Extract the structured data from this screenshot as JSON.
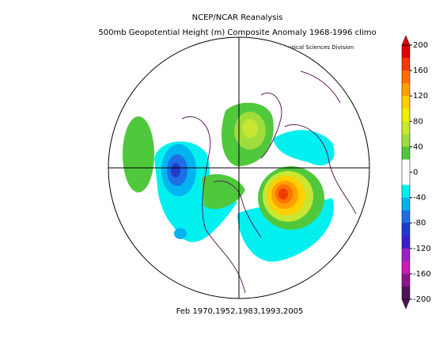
{
  "header": {
    "title": "NCEP/NCAR Reanalysis",
    "subtitle": "500mb Geopotential Height (m) Composite Anomaly 1968-1996 climo",
    "credit": "NOAA/ESRL Physical Sciences Division"
  },
  "footer": "Feb 1970,1952,1983,1993,2005",
  "colorbar": {
    "ticks": [
      200,
      160,
      120,
      80,
      40,
      0,
      -40,
      -80,
      -120,
      -160,
      -200
    ],
    "colors": [
      "#e00000",
      "#f03a00",
      "#ff7000",
      "#ffa000",
      "#ffd000",
      "#f0f000",
      "#c8e632",
      "#a0dc3c",
      "#50c83c",
      "#ffffff",
      "#ffffff",
      "#00f0f0",
      "#00b4f0",
      "#1e6ee6",
      "#1e3cc8",
      "#3c1ec8",
      "#a01ec8",
      "#c81eb4",
      "#8c148c",
      "#50145a"
    ]
  }
}
